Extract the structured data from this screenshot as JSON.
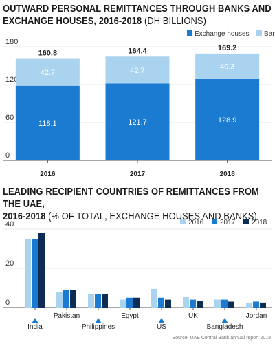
{
  "title1": {
    "main_line1": "OUTWARD PERSONAL REMITTANCES THROUGH BANKS AND",
    "main_line2": "EXCHANGE HOUSES, 2016-2018",
    "sub": " (DH BILLIONS)"
  },
  "title2": {
    "main_line1": "LEADING RECIPIENT COUNTRIES OF REMITTANCES FROM THE UAE,",
    "main_line2": "2016-2018",
    "sub": " (% OF TOTAL, EXCHANGE HOUSES AND BANKS)"
  },
  "source": "Source: UAE Central Bank annual report 2018",
  "chart_data": [
    {
      "type": "bar",
      "stacked": true,
      "categories": [
        "2016",
        "2017",
        "2018"
      ],
      "series": [
        {
          "name": "Exchange houses",
          "values": [
            118.1,
            121.7,
            128.9
          ],
          "color": "#1a7bd1"
        },
        {
          "name": "Banks",
          "values": [
            42.7,
            42.7,
            40.3
          ],
          "color": "#a9d3ef"
        }
      ],
      "totals": [
        160.8,
        164.4,
        169.2
      ],
      "yticks": [
        0,
        60,
        120,
        180
      ],
      "ylim": [
        0,
        180
      ],
      "legend": "top-right",
      "grid": true
    },
    {
      "type": "bar",
      "categories": [
        "India",
        "Pakistan",
        "Philippines",
        "Egypt",
        "US",
        "UK",
        "Bangladesh",
        "Jordan"
      ],
      "marked": [
        "India",
        "Philippines",
        "US",
        "Bangladesh"
      ],
      "series": [
        {
          "name": "2016",
          "values": [
            35,
            8,
            7,
            4,
            9.5,
            5.5,
            4,
            2.5
          ],
          "color": "#a9d3ef"
        },
        {
          "name": "2017",
          "values": [
            35,
            9,
            7,
            5,
            5,
            4,
            4,
            3
          ],
          "color": "#1a7bd1"
        },
        {
          "name": "2018",
          "values": [
            38,
            9,
            7,
            5,
            4,
            3.5,
            3,
            2.5
          ],
          "color": "#0d2d56"
        }
      ],
      "yticks": [
        0,
        20,
        40
      ],
      "ylim": [
        0,
        40
      ],
      "legend": "top-right",
      "grid": true
    }
  ]
}
